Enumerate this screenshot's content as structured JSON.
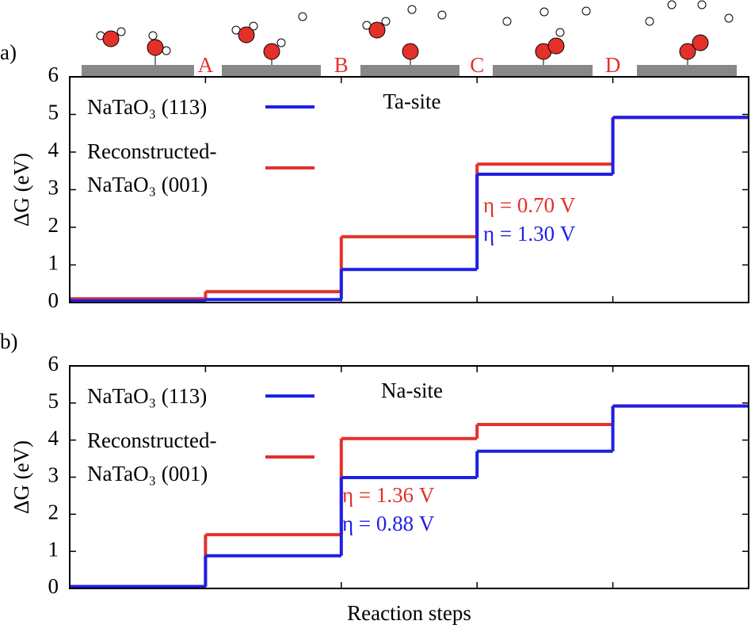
{
  "chart_data": [
    {
      "type": "step",
      "label": "a)",
      "ylabel": "ΔG (eV)",
      "legend_title": "Ta-site",
      "boundary_labels": [
        "A",
        "B",
        "C",
        "D"
      ],
      "categories": [
        null,
        null,
        null,
        null,
        null
      ],
      "series": [
        {
          "name": "NaTaO₃ (113)",
          "color": "#1f1fe6",
          "values": [
            0.05,
            0.08,
            0.88,
            3.41,
            4.92
          ]
        },
        {
          "name": "Reconstructed-NaTaO₃ (001)",
          "color": "#e3312a",
          "values": [
            0.1,
            0.29,
            1.75,
            3.68,
            4.92
          ]
        }
      ],
      "annotations": [
        {
          "text": "η = 0.70 V",
          "color": "#e3312a"
        },
        {
          "text": "η = 1.30 V",
          "color": "#1f1fe6"
        }
      ],
      "ylim": [
        0,
        6
      ],
      "yticks": [
        0,
        1,
        2,
        3,
        4,
        5,
        6
      ]
    },
    {
      "type": "step",
      "label": "b)",
      "ylabel": "ΔG (eV)",
      "legend_title": "Na-site",
      "xlabel": "Reaction steps",
      "categories": [
        null,
        null,
        null,
        null,
        null
      ],
      "series": [
        {
          "name": "NaTaO₃ (113)",
          "color": "#1f1fe6",
          "values": [
            0.05,
            0.88,
            2.99,
            3.7,
            4.92
          ]
        },
        {
          "name": "Reconstructed-NaTaO₃ (001)",
          "color": "#e3312a",
          "values": [
            0.05,
            1.45,
            4.04,
            4.42,
            4.92
          ]
        }
      ],
      "annotations": [
        {
          "text": "η = 1.36 V",
          "color": "#e3312a"
        },
        {
          "text": "η = 0.88 V",
          "color": "#1f1fe6"
        }
      ],
      "ylim": [
        0,
        6
      ],
      "yticks": [
        0,
        1,
        2,
        3,
        4,
        5,
        6
      ]
    }
  ]
}
